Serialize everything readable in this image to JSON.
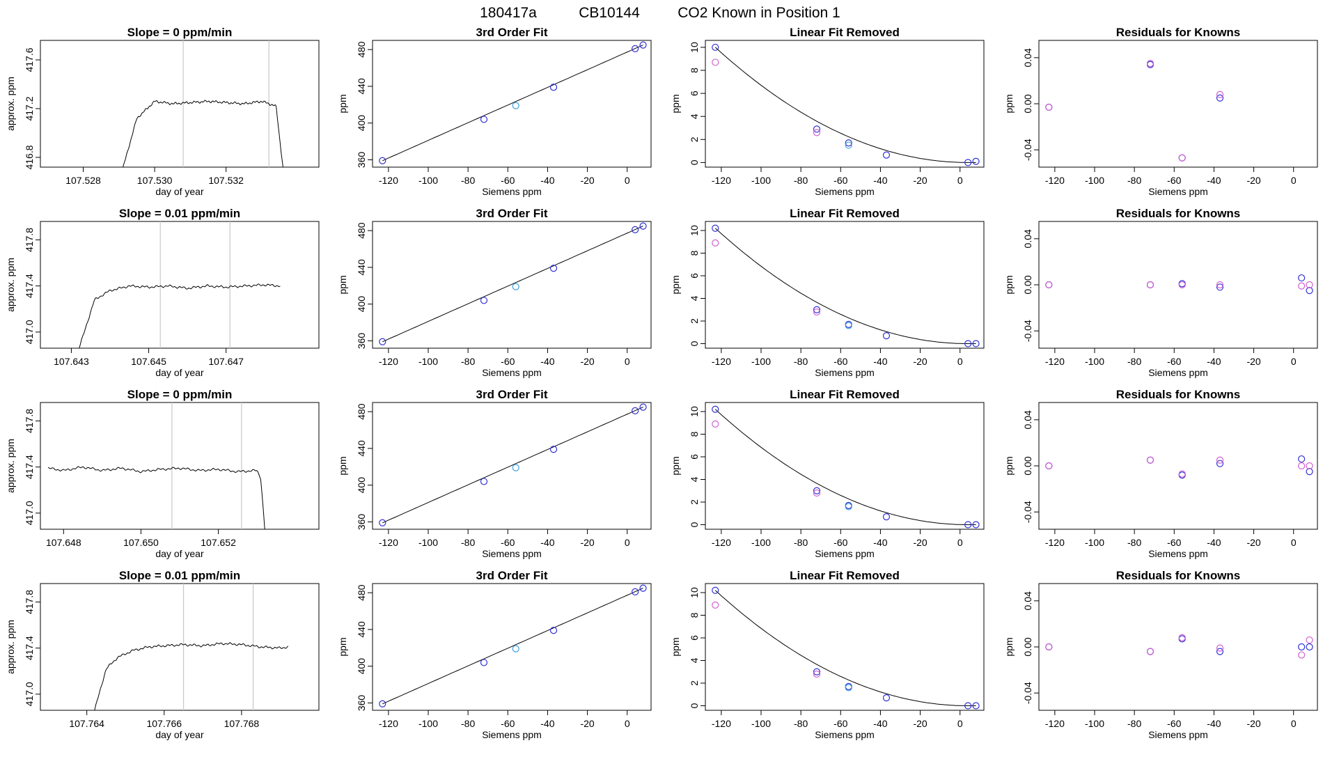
{
  "figure": {
    "title_parts": [
      "180417a",
      "CB10144",
      "CO2 Known in Position  1"
    ]
  },
  "colors": {
    "trace": "#000000",
    "vline": "#c8c8c8",
    "marker_blue": "#3030d8",
    "marker_magenta": "#d060d0",
    "marker_cyan": "#40a0e0",
    "fit_line": "#000000"
  },
  "chart_data": [
    {
      "row": 0,
      "panel": "timeseries",
      "type": "line",
      "title": "Slope =  0  ppm/min",
      "xlabel": "day of year",
      "ylabel": "approx. ppm",
      "xlim": [
        107.5268,
        107.5346
      ],
      "ylim": [
        416.72,
        417.76
      ],
      "xticks": [
        "107.528",
        "107.530",
        "107.532"
      ],
      "yticks": [
        "416.8",
        "417.2",
        "417.6"
      ],
      "vlines": [
        107.5308,
        107.5332
      ],
      "trace": {
        "x": [
          107.5291,
          107.5295,
          107.53,
          107.5305,
          107.531,
          107.5315,
          107.532,
          107.5325,
          107.533,
          107.5334,
          107.5336
        ],
        "y": [
          416.7,
          417.12,
          417.26,
          417.24,
          417.25,
          417.26,
          417.25,
          417.24,
          417.26,
          417.22,
          416.7
        ]
      }
    },
    {
      "row": 0,
      "panel": "fit3",
      "type": "scatter",
      "title": "3rd Order Fit",
      "xlabel": "Siemens ppm",
      "ylabel": "ppm",
      "xlim": [
        -128,
        12
      ],
      "ylim": [
        352,
        490
      ],
      "xticks": [
        "-120",
        "-100",
        "-80",
        "-60",
        "-40",
        "-20",
        "0"
      ],
      "yticks": [
        "360",
        "400",
        "440",
        "480"
      ],
      "points": [
        {
          "x": -123,
          "y": 359,
          "c": "blue"
        },
        {
          "x": -72,
          "y": 404,
          "c": "blue"
        },
        {
          "x": -56,
          "y": 419,
          "c": "cyan"
        },
        {
          "x": -37,
          "y": 439,
          "c": "blue"
        },
        {
          "x": 4,
          "y": 481,
          "c": "blue"
        },
        {
          "x": 8,
          "y": 485,
          "c": "blue"
        }
      ]
    },
    {
      "row": 0,
      "panel": "linear_removed",
      "type": "scatter",
      "title": "Linear Fit Removed",
      "xlabel": "Siemens ppm",
      "ylabel": "ppm",
      "xlim": [
        -128,
        12
      ],
      "ylim": [
        -0.4,
        10.6
      ],
      "xticks": [
        "-120",
        "-100",
        "-80",
        "-60",
        "-40",
        "-20",
        "0"
      ],
      "yticks": [
        "0",
        "2",
        "4",
        "6",
        "8",
        "10"
      ],
      "points": [
        {
          "x": -123,
          "y": 10.0,
          "c": "blue"
        },
        {
          "x": -123,
          "y": 8.7,
          "c": "magenta"
        },
        {
          "x": -72,
          "y": 2.9,
          "c": "blue"
        },
        {
          "x": -72,
          "y": 2.6,
          "c": "magenta"
        },
        {
          "x": -56,
          "y": 1.7,
          "c": "blue"
        },
        {
          "x": -56,
          "y": 1.5,
          "c": "cyan"
        },
        {
          "x": -37,
          "y": 0.65,
          "c": "blue"
        },
        {
          "x": 4,
          "y": 0.0,
          "c": "blue"
        },
        {
          "x": 8,
          "y": 0.1,
          "c": "blue"
        }
      ]
    },
    {
      "row": 0,
      "panel": "residuals",
      "type": "scatter",
      "title": "Residuals for Knowns",
      "xlabel": "Siemens ppm",
      "ylabel": "ppm",
      "xlim": [
        -128,
        12
      ],
      "ylim": [
        -0.055,
        0.055
      ],
      "xticks": [
        "-120",
        "-100",
        "-80",
        "-60",
        "-40",
        "-20",
        "0"
      ],
      "yticks": [
        "-0.04",
        "0.00",
        "0.04"
      ],
      "points": [
        {
          "x": -123,
          "y": -0.003,
          "c": "blue"
        },
        {
          "x": -123,
          "y": -0.003,
          "c": "magenta"
        },
        {
          "x": -72,
          "y": 0.034,
          "c": "blue"
        },
        {
          "x": -72,
          "y": 0.035,
          "c": "magenta"
        },
        {
          "x": -56,
          "y": -0.047,
          "c": "blue"
        },
        {
          "x": -56,
          "y": -0.047,
          "c": "magenta"
        },
        {
          "x": -37,
          "y": 0.005,
          "c": "blue"
        },
        {
          "x": -37,
          "y": 0.008,
          "c": "magenta"
        }
      ]
    },
    {
      "row": 1,
      "panel": "timeseries",
      "type": "line",
      "title": "Slope =  0.01  ppm/min",
      "xlabel": "day of year",
      "ylabel": "approx. ppm",
      "xlim": [
        107.6422,
        107.6494
      ],
      "ylim": [
        416.86,
        417.96
      ],
      "xticks": [
        "107.643",
        "107.645",
        "107.647"
      ],
      "yticks": [
        "417.0",
        "417.4",
        "417.8"
      ],
      "vlines": [
        107.6453,
        107.6471
      ],
      "trace": {
        "x": [
          107.6432,
          107.6436,
          107.644,
          107.6445,
          107.645,
          107.6455,
          107.646,
          107.6465,
          107.647,
          107.6475,
          107.648,
          107.6484
        ],
        "y": [
          416.86,
          417.28,
          417.36,
          417.4,
          417.39,
          417.4,
          417.38,
          417.4,
          417.39,
          417.4,
          417.41,
          417.4
        ]
      }
    },
    {
      "row": 1,
      "panel": "fit3",
      "type": "scatter",
      "title": "3rd Order Fit",
      "xlabel": "Siemens ppm",
      "ylabel": "ppm",
      "xlim": [
        -128,
        12
      ],
      "ylim": [
        352,
        490
      ],
      "xticks": [
        "-120",
        "-100",
        "-80",
        "-60",
        "-40",
        "-20",
        "0"
      ],
      "yticks": [
        "360",
        "400",
        "440",
        "480"
      ],
      "points": [
        {
          "x": -123,
          "y": 359,
          "c": "blue"
        },
        {
          "x": -72,
          "y": 404,
          "c": "blue"
        },
        {
          "x": -56,
          "y": 419,
          "c": "cyan"
        },
        {
          "x": -37,
          "y": 439,
          "c": "blue"
        },
        {
          "x": 4,
          "y": 481,
          "c": "blue"
        },
        {
          "x": 8,
          "y": 485,
          "c": "blue"
        }
      ]
    },
    {
      "row": 1,
      "panel": "linear_removed",
      "type": "scatter",
      "title": "Linear Fit Removed",
      "xlabel": "Siemens ppm",
      "ylabel": "ppm",
      "xlim": [
        -128,
        12
      ],
      "ylim": [
        -0.4,
        10.8
      ],
      "xticks": [
        "-120",
        "-100",
        "-80",
        "-60",
        "-40",
        "-20",
        "0"
      ],
      "yticks": [
        "0",
        "2",
        "4",
        "6",
        "8",
        "10"
      ],
      "points": [
        {
          "x": -123,
          "y": 10.2,
          "c": "blue"
        },
        {
          "x": -123,
          "y": 8.9,
          "c": "magenta"
        },
        {
          "x": -72,
          "y": 3.0,
          "c": "blue"
        },
        {
          "x": -72,
          "y": 2.8,
          "c": "magenta"
        },
        {
          "x": -56,
          "y": 1.7,
          "c": "blue"
        },
        {
          "x": -56,
          "y": 1.6,
          "c": "cyan"
        },
        {
          "x": -37,
          "y": 0.7,
          "c": "blue"
        },
        {
          "x": 4,
          "y": 0.0,
          "c": "blue"
        },
        {
          "x": 8,
          "y": 0.0,
          "c": "blue"
        }
      ]
    },
    {
      "row": 1,
      "panel": "residuals",
      "type": "scatter",
      "title": "Residuals for Knowns",
      "xlabel": "Siemens ppm",
      "ylabel": "ppm",
      "xlim": [
        -128,
        12
      ],
      "ylim": [
        -0.055,
        0.055
      ],
      "xticks": [
        "-120",
        "-100",
        "-80",
        "-60",
        "-40",
        "-20",
        "0"
      ],
      "yticks": [
        "-0.04",
        "0.00",
        "0.04"
      ],
      "points": [
        {
          "x": -123,
          "y": 0.0,
          "c": "blue"
        },
        {
          "x": -123,
          "y": 0.0,
          "c": "magenta"
        },
        {
          "x": -72,
          "y": 0.0,
          "c": "blue"
        },
        {
          "x": -72,
          "y": 0.0,
          "c": "magenta"
        },
        {
          "x": -56,
          "y": 0.001,
          "c": "blue"
        },
        {
          "x": -56,
          "y": 0.0,
          "c": "magenta"
        },
        {
          "x": -37,
          "y": -0.002,
          "c": "blue"
        },
        {
          "x": -37,
          "y": 0.0,
          "c": "magenta"
        },
        {
          "x": 4,
          "y": 0.006,
          "c": "blue"
        },
        {
          "x": 4,
          "y": -0.001,
          "c": "magenta"
        },
        {
          "x": 8,
          "y": -0.005,
          "c": "blue"
        },
        {
          "x": 8,
          "y": 0.0,
          "c": "magenta"
        }
      ]
    },
    {
      "row": 2,
      "panel": "timeseries",
      "type": "line",
      "title": "Slope =  0  ppm/min",
      "xlabel": "day of year",
      "ylabel": "approx. ppm",
      "xlim": [
        107.6474,
        107.6546
      ],
      "ylim": [
        416.86,
        417.96
      ],
      "xticks": [
        "107.648",
        "107.650",
        "107.652"
      ],
      "yticks": [
        "417.0",
        "417.4",
        "417.8"
      ],
      "vlines": [
        107.6508,
        107.6526
      ],
      "trace": {
        "x": [
          107.6476,
          107.648,
          107.6485,
          107.649,
          107.6495,
          107.65,
          107.6505,
          107.651,
          107.6515,
          107.652,
          107.6525,
          107.653,
          107.6531,
          107.6532
        ],
        "y": [
          417.39,
          417.37,
          417.4,
          417.37,
          417.39,
          417.36,
          417.38,
          417.39,
          417.37,
          417.38,
          417.36,
          417.37,
          417.3,
          416.86
        ]
      }
    },
    {
      "row": 2,
      "panel": "fit3",
      "type": "scatter",
      "title": "3rd Order Fit",
      "xlabel": "Siemens ppm",
      "ylabel": "ppm",
      "xlim": [
        -128,
        12
      ],
      "ylim": [
        352,
        490
      ],
      "xticks": [
        "-120",
        "-100",
        "-80",
        "-60",
        "-40",
        "-20",
        "0"
      ],
      "yticks": [
        "360",
        "400",
        "440",
        "480"
      ],
      "points": [
        {
          "x": -123,
          "y": 359,
          "c": "blue"
        },
        {
          "x": -72,
          "y": 404,
          "c": "blue"
        },
        {
          "x": -56,
          "y": 419,
          "c": "cyan"
        },
        {
          "x": -37,
          "y": 439,
          "c": "blue"
        },
        {
          "x": 4,
          "y": 481,
          "c": "blue"
        },
        {
          "x": 8,
          "y": 485,
          "c": "blue"
        }
      ]
    },
    {
      "row": 2,
      "panel": "linear_removed",
      "type": "scatter",
      "title": "Linear Fit Removed",
      "xlabel": "Siemens ppm",
      "ylabel": "ppm",
      "xlim": [
        -128,
        12
      ],
      "ylim": [
        -0.4,
        10.8
      ],
      "xticks": [
        "-120",
        "-100",
        "-80",
        "-60",
        "-40",
        "-20",
        "0"
      ],
      "yticks": [
        "0",
        "2",
        "4",
        "6",
        "8",
        "10"
      ],
      "points": [
        {
          "x": -123,
          "y": 10.2,
          "c": "blue"
        },
        {
          "x": -123,
          "y": 8.9,
          "c": "magenta"
        },
        {
          "x": -72,
          "y": 3.0,
          "c": "blue"
        },
        {
          "x": -72,
          "y": 2.8,
          "c": "magenta"
        },
        {
          "x": -56,
          "y": 1.7,
          "c": "blue"
        },
        {
          "x": -56,
          "y": 1.6,
          "c": "cyan"
        },
        {
          "x": -37,
          "y": 0.7,
          "c": "blue"
        },
        {
          "x": 4,
          "y": 0.0,
          "c": "blue"
        },
        {
          "x": 8,
          "y": 0.0,
          "c": "blue"
        }
      ]
    },
    {
      "row": 2,
      "panel": "residuals",
      "type": "scatter",
      "title": "Residuals for Knowns",
      "xlabel": "Siemens ppm",
      "ylabel": "ppm",
      "xlim": [
        -128,
        12
      ],
      "ylim": [
        -0.055,
        0.055
      ],
      "xticks": [
        "-120",
        "-100",
        "-80",
        "-60",
        "-40",
        "-20",
        "0"
      ],
      "yticks": [
        "-0.04",
        "0.00",
        "0.04"
      ],
      "points": [
        {
          "x": -123,
          "y": 0.0,
          "c": "blue"
        },
        {
          "x": -123,
          "y": 0.0,
          "c": "magenta"
        },
        {
          "x": -72,
          "y": 0.005,
          "c": "blue"
        },
        {
          "x": -72,
          "y": 0.005,
          "c": "magenta"
        },
        {
          "x": -56,
          "y": -0.008,
          "c": "blue"
        },
        {
          "x": -56,
          "y": -0.007,
          "c": "magenta"
        },
        {
          "x": -37,
          "y": 0.002,
          "c": "blue"
        },
        {
          "x": -37,
          "y": 0.005,
          "c": "magenta"
        },
        {
          "x": 4,
          "y": 0.006,
          "c": "blue"
        },
        {
          "x": 4,
          "y": 0.0,
          "c": "magenta"
        },
        {
          "x": 8,
          "y": -0.005,
          "c": "blue"
        },
        {
          "x": 8,
          "y": 0.0,
          "c": "magenta"
        }
      ]
    },
    {
      "row": 3,
      "panel": "timeseries",
      "type": "line",
      "title": "Slope =  0.01  ppm/min",
      "xlabel": "day of year",
      "ylabel": "approx. ppm",
      "xlim": [
        107.7628,
        107.77
      ],
      "ylim": [
        416.86,
        417.96
      ],
      "xticks": [
        "107.764",
        "107.766",
        "107.768"
      ],
      "yticks": [
        "417.0",
        "417.4",
        "417.8"
      ],
      "vlines": [
        107.7665,
        107.7683
      ],
      "trace": {
        "x": [
          107.7642,
          107.7645,
          107.7648,
          107.7652,
          107.7656,
          107.766,
          107.7665,
          107.767,
          107.7675,
          107.768,
          107.7685,
          107.769,
          107.7692
        ],
        "y": [
          416.86,
          417.22,
          417.32,
          417.38,
          417.41,
          417.42,
          417.43,
          417.42,
          417.44,
          417.43,
          417.41,
          417.4,
          417.41
        ]
      }
    },
    {
      "row": 3,
      "panel": "fit3",
      "type": "scatter",
      "title": "3rd Order Fit",
      "xlabel": "Siemens ppm",
      "ylabel": "ppm",
      "xlim": [
        -128,
        12
      ],
      "ylim": [
        352,
        490
      ],
      "xticks": [
        "-120",
        "-100",
        "-80",
        "-60",
        "-40",
        "-20",
        "0"
      ],
      "yticks": [
        "360",
        "400",
        "440",
        "480"
      ],
      "points": [
        {
          "x": -123,
          "y": 359,
          "c": "blue"
        },
        {
          "x": -72,
          "y": 404,
          "c": "blue"
        },
        {
          "x": -56,
          "y": 419,
          "c": "cyan"
        },
        {
          "x": -37,
          "y": 439,
          "c": "blue"
        },
        {
          "x": 4,
          "y": 481,
          "c": "blue"
        },
        {
          "x": 8,
          "y": 485,
          "c": "blue"
        }
      ]
    },
    {
      "row": 3,
      "panel": "linear_removed",
      "type": "scatter",
      "title": "Linear Fit Removed",
      "xlabel": "Siemens ppm",
      "ylabel": "ppm",
      "xlim": [
        -128,
        12
      ],
      "ylim": [
        -0.4,
        10.8
      ],
      "xticks": [
        "-120",
        "-100",
        "-80",
        "-60",
        "-40",
        "-20",
        "0"
      ],
      "yticks": [
        "0",
        "2",
        "4",
        "6",
        "8",
        "10"
      ],
      "points": [
        {
          "x": -123,
          "y": 10.2,
          "c": "blue"
        },
        {
          "x": -123,
          "y": 8.9,
          "c": "magenta"
        },
        {
          "x": -72,
          "y": 3.0,
          "c": "blue"
        },
        {
          "x": -72,
          "y": 2.8,
          "c": "magenta"
        },
        {
          "x": -56,
          "y": 1.7,
          "c": "blue"
        },
        {
          "x": -56,
          "y": 1.6,
          "c": "cyan"
        },
        {
          "x": -37,
          "y": 0.7,
          "c": "blue"
        },
        {
          "x": 4,
          "y": 0.0,
          "c": "blue"
        },
        {
          "x": 8,
          "y": 0.0,
          "c": "blue"
        }
      ]
    },
    {
      "row": 3,
      "panel": "residuals",
      "type": "scatter",
      "title": "Residuals for Knowns",
      "xlabel": "Siemens ppm",
      "ylabel": "ppm",
      "xlim": [
        -128,
        12
      ],
      "ylim": [
        -0.055,
        0.055
      ],
      "xticks": [
        "-120",
        "-100",
        "-80",
        "-60",
        "-40",
        "-20",
        "0"
      ],
      "yticks": [
        "-0.04",
        "0.00",
        "0.04"
      ],
      "points": [
        {
          "x": -123,
          "y": 0.0,
          "c": "blue"
        },
        {
          "x": -123,
          "y": 0.0,
          "c": "magenta"
        },
        {
          "x": -72,
          "y": -0.004,
          "c": "blue"
        },
        {
          "x": -72,
          "y": -0.004,
          "c": "magenta"
        },
        {
          "x": -56,
          "y": 0.007,
          "c": "blue"
        },
        {
          "x": -56,
          "y": 0.008,
          "c": "magenta"
        },
        {
          "x": -37,
          "y": -0.004,
          "c": "blue"
        },
        {
          "x": -37,
          "y": -0.001,
          "c": "magenta"
        },
        {
          "x": 4,
          "y": 0.0,
          "c": "blue"
        },
        {
          "x": 4,
          "y": -0.007,
          "c": "magenta"
        },
        {
          "x": 8,
          "y": 0.0,
          "c": "blue"
        },
        {
          "x": 8,
          "y": 0.006,
          "c": "magenta"
        }
      ]
    }
  ]
}
